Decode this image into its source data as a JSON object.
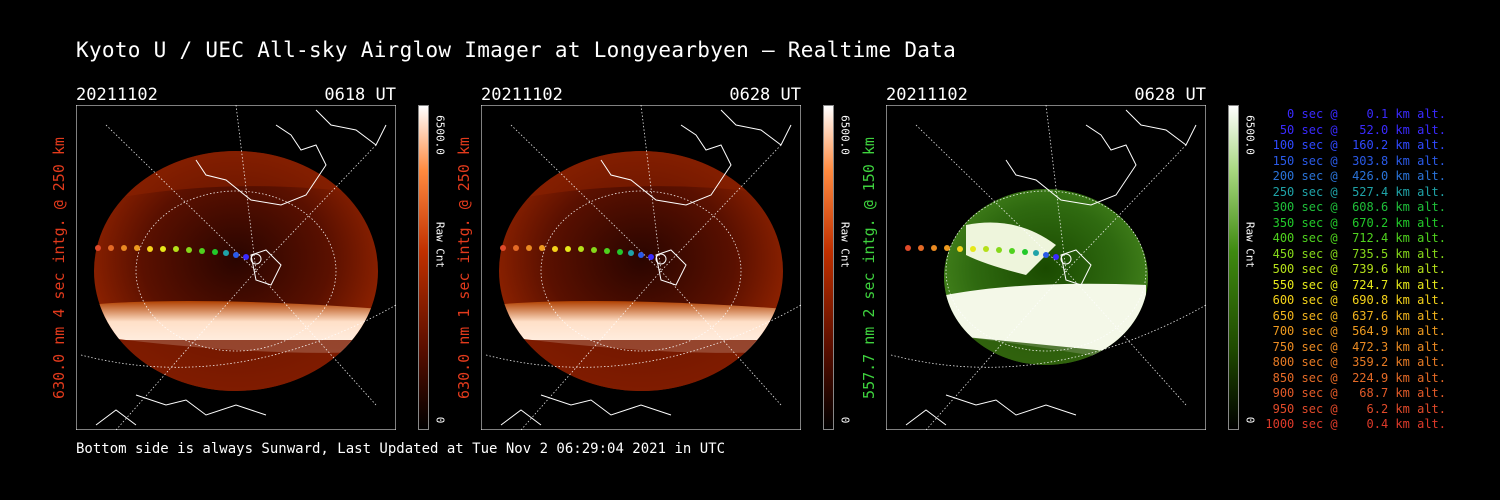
{
  "title": "Kyoto U / UEC All-sky Airglow Imager at Longyearbyen — Realtime Data",
  "footer": "Bottom side is always Sunward, Last Updated at Tue Nov  2 06:29:04 2021 in UTC",
  "panels": [
    {
      "date": "20211102",
      "time": "0618 UT",
      "side_label": "630.0 nm 4 sec intg. @ 250 km",
      "side_color": "#e23a1c",
      "cbar_max": "6500.0",
      "cbar_label": "Raw Cnt",
      "cbar_min": "0"
    },
    {
      "date": "20211102",
      "time": "0628 UT",
      "side_label": "630.0 nm 1 sec intg. @ 250 km",
      "side_color": "#e23a1c",
      "cbar_max": "6500.0",
      "cbar_label": "Raw Cnt",
      "cbar_min": "0"
    },
    {
      "date": "20211102",
      "time": "0628 UT",
      "side_label": "557.7 nm 2 sec intg. @ 150 km",
      "side_color": "#3ed23e",
      "cbar_max": "6500.0",
      "cbar_label": "Raw Cnt",
      "cbar_min": "0"
    }
  ],
  "legend": [
    {
      "text": "   0 sec @    0.1 km alt.",
      "color": "#3a2aff"
    },
    {
      "text": "  50 sec @   52.0 km alt.",
      "color": "#3a2aff"
    },
    {
      "text": " 100 sec @  160.2 km alt.",
      "color": "#2f49ff"
    },
    {
      "text": " 150 sec @  303.8 km alt.",
      "color": "#2a5ae8"
    },
    {
      "text": " 200 sec @  426.0 km alt.",
      "color": "#2a73d8"
    },
    {
      "text": " 250 sec @  527.4 km alt.",
      "color": "#1fa3a8"
    },
    {
      "text": " 300 sec @  608.6 km alt.",
      "color": "#1fbf3a"
    },
    {
      "text": " 350 sec @  670.2 km alt.",
      "color": "#22c92a"
    },
    {
      "text": " 400 sec @  712.4 km alt.",
      "color": "#4fd21e"
    },
    {
      "text": " 450 sec @  735.5 km alt.",
      "color": "#86d81a"
    },
    {
      "text": " 500 sec @  739.6 km alt.",
      "color": "#b5e01a"
    },
    {
      "text": " 550 sec @  724.7 km alt.",
      "color": "#e6e81a"
    },
    {
      "text": " 600 sec @  690.8 km alt.",
      "color": "#f4d21a"
    },
    {
      "text": " 650 sec @  637.6 km alt.",
      "color": "#f0b21c"
    },
    {
      "text": " 700 sec @  564.9 km alt.",
      "color": "#ee9a1f"
    },
    {
      "text": " 750 sec @  472.3 km alt.",
      "color": "#ea8a22"
    },
    {
      "text": " 800 sec @  359.2 km alt.",
      "color": "#e67a24"
    },
    {
      "text": " 850 sec @  224.9 km alt.",
      "color": "#e46a26"
    },
    {
      "text": " 900 sec @   68.7 km alt.",
      "color": "#e25a28"
    },
    {
      "text": " 950 sec @    6.2 km alt.",
      "color": "#e04a2a"
    },
    {
      "text": "1000 sec @    0.4 km alt.",
      "color": "#de3a2a"
    }
  ]
}
